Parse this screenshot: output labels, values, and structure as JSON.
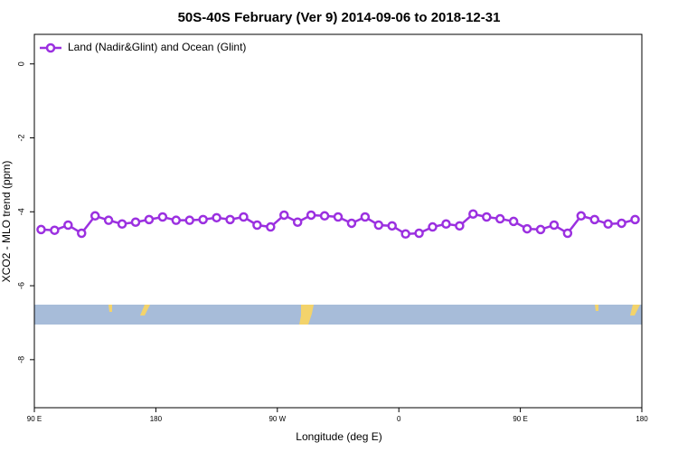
{
  "chart_data": {
    "type": "line",
    "title": "50S-40S February (Ver 9)   2014-09-06 to 2018-12-31",
    "x_label": "Longitude (deg E)",
    "y_label": "XCO2 - MLO trend (ppm)",
    "xlim": [
      90,
      540
    ],
    "xticks": [
      {
        "value": 90,
        "label": "90 E"
      },
      {
        "value": 180,
        "label": "180"
      },
      {
        "value": 270,
        "label": "90 W"
      },
      {
        "value": 360,
        "label": "0"
      },
      {
        "value": 450,
        "label": "90 E"
      },
      {
        "value": 540,
        "label": "180"
      }
    ],
    "ylim": [
      -9.3,
      0.8
    ],
    "yticks": [
      0,
      -2,
      -4,
      -6,
      -8
    ],
    "legend": "top-left",
    "x": [
      95,
      105,
      115,
      125,
      135,
      145,
      155,
      165,
      175,
      185,
      195,
      205,
      215,
      225,
      235,
      245,
      255,
      265,
      275,
      285,
      295,
      305,
      315,
      325,
      335,
      345,
      355,
      365,
      375,
      385,
      395,
      405,
      415,
      425,
      435,
      445,
      455,
      465,
      475,
      485,
      495,
      505,
      515,
      525,
      535
    ],
    "series": [
      {
        "name": "Land (Nadir&Glint) and Ocean (Glint)",
        "color": "#9b30e0",
        "values": [
          -4.48,
          -4.5,
          -4.36,
          -4.58,
          -4.11,
          -4.23,
          -4.33,
          -4.28,
          -4.21,
          -4.14,
          -4.23,
          -4.23,
          -4.21,
          -4.16,
          -4.21,
          -4.14,
          -4.36,
          -4.41,
          -4.09,
          -4.28,
          -4.09,
          -4.11,
          -4.14,
          -4.31,
          -4.14,
          -4.36,
          -4.38,
          -4.6,
          -4.58,
          -4.41,
          -4.33,
          -4.38,
          -4.06,
          -4.14,
          -4.19,
          -4.26,
          -4.46,
          -4.48,
          -4.36,
          -4.58,
          -4.11,
          -4.21,
          -4.33,
          -4.31,
          -4.21
        ]
      }
    ]
  }
}
